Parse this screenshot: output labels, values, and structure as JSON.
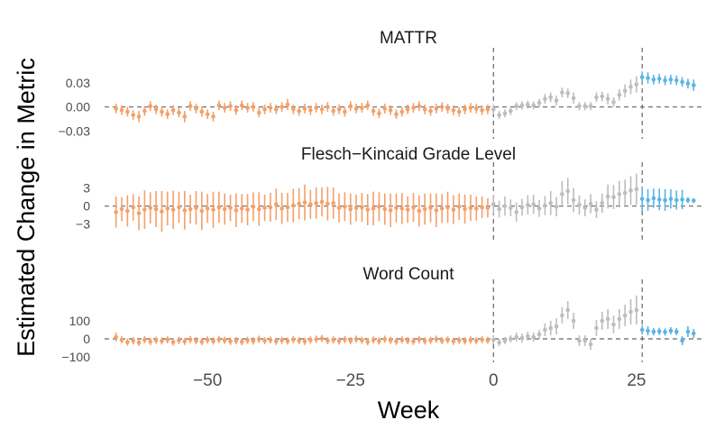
{
  "chart_data": {
    "type": "scatter",
    "xlabel": "Week",
    "ylabel": "Estimated Change in Metric",
    "xlim": [
      -68,
      37
    ],
    "x_ticks": [
      -50,
      -25,
      0,
      25
    ],
    "x_tick_labels": [
      "−50",
      "−25",
      "0",
      "25"
    ],
    "vlines": [
      0,
      26
    ],
    "colors": {
      "pre": "#F4A06A",
      "mid": "#BDBDBD",
      "post": "#5AB4E6"
    },
    "panels": [
      {
        "title": "MATTR",
        "ylim": [
          -0.035,
          0.06
        ],
        "y_ticks": [
          0.03,
          0.0,
          -0.03
        ],
        "y_tick_labels": [
          "0.03",
          "0.00",
          "−0.03"
        ],
        "pre": {
          "x": [
            -66,
            -65,
            -64,
            -63,
            -62,
            -61,
            -60,
            -59,
            -58,
            -57,
            -56,
            -55,
            -54,
            -53,
            -52,
            -51,
            -50,
            -49,
            -48,
            -47,
            -46,
            -45,
            -44,
            -43,
            -42,
            -41,
            -40,
            -39,
            -38,
            -37,
            -36,
            -35,
            -34,
            -33,
            -32,
            -31,
            -30,
            -29,
            -28,
            -27,
            -26,
            -25,
            -24,
            -23,
            -22,
            -21,
            -20,
            -19,
            -18,
            -17,
            -16,
            -15,
            -14,
            -13,
            -12,
            -11,
            -10,
            -9,
            -8,
            -7,
            -6,
            -5,
            -4,
            -3,
            -2,
            -1
          ],
          "y": [
            -0.002,
            -0.004,
            -0.006,
            -0.01,
            -0.012,
            -0.005,
            0.001,
            -0.003,
            -0.006,
            -0.009,
            -0.004,
            -0.007,
            -0.012,
            0.001,
            -0.002,
            -0.006,
            -0.009,
            -0.012,
            0.002,
            -0.001,
            0.001,
            -0.004,
            0.002,
            -0.001,
            0.0,
            -0.007,
            -0.003,
            -0.001,
            -0.003,
            0.0,
            0.003,
            -0.003,
            -0.005,
            -0.002,
            -0.004,
            -0.001,
            -0.003,
            0.0,
            -0.005,
            -0.003,
            -0.006,
            0.001,
            -0.002,
            -0.001,
            0.002,
            -0.005,
            -0.008,
            -0.002,
            -0.004,
            -0.009,
            -0.006,
            -0.003,
            -0.001,
            0.001,
            -0.003,
            -0.005,
            -0.002,
            0.0,
            -0.002,
            -0.004,
            -0.006,
            -0.003,
            -0.001,
            -0.002,
            -0.004,
            -0.003
          ],
          "err": [
            0.006,
            0.006,
            0.006,
            0.006,
            0.007,
            0.006,
            0.006,
            0.006,
            0.006,
            0.006,
            0.006,
            0.006,
            0.007,
            0.006,
            0.006,
            0.006,
            0.006,
            0.006,
            0.006,
            0.006,
            0.006,
            0.006,
            0.006,
            0.006,
            0.006,
            0.006,
            0.006,
            0.006,
            0.006,
            0.006,
            0.007,
            0.006,
            0.006,
            0.006,
            0.006,
            0.006,
            0.006,
            0.006,
            0.006,
            0.006,
            0.006,
            0.006,
            0.006,
            0.006,
            0.006,
            0.006,
            0.006,
            0.006,
            0.006,
            0.006,
            0.006,
            0.006,
            0.006,
            0.006,
            0.006,
            0.006,
            0.006,
            0.006,
            0.006,
            0.006,
            0.006,
            0.006,
            0.006,
            0.006,
            0.006,
            0.006
          ]
        },
        "mid": {
          "x": [
            0,
            1,
            2,
            3,
            4,
            5,
            6,
            7,
            8,
            9,
            10,
            11,
            12,
            13,
            14,
            15,
            16,
            17,
            18,
            19,
            20,
            21,
            22,
            23,
            24,
            25
          ],
          "y": [
            -0.003,
            -0.01,
            -0.008,
            -0.005,
            0.001,
            0.002,
            0.003,
            0.002,
            0.005,
            0.01,
            0.012,
            0.008,
            0.018,
            0.017,
            0.011,
            0.001,
            0.001,
            0.001,
            0.012,
            0.013,
            0.01,
            0.006,
            0.015,
            0.02,
            0.025,
            0.028
          ],
          "err": [
            0.006,
            0.005,
            0.005,
            0.005,
            0.005,
            0.005,
            0.005,
            0.005,
            0.005,
            0.006,
            0.006,
            0.006,
            0.006,
            0.006,
            0.007,
            0.005,
            0.005,
            0.005,
            0.006,
            0.006,
            0.007,
            0.006,
            0.007,
            0.008,
            0.009,
            0.01
          ]
        },
        "post": {
          "x": [
            26,
            27,
            28,
            29,
            30,
            31,
            32,
            33,
            34,
            35
          ],
          "y": [
            0.037,
            0.036,
            0.034,
            0.035,
            0.033,
            0.034,
            0.033,
            0.031,
            0.029,
            0.027
          ],
          "err": [
            0.007,
            0.007,
            0.006,
            0.006,
            0.006,
            0.006,
            0.006,
            0.006,
            0.006,
            0.007
          ]
        }
      },
      {
        "title": "Flesch−Kincaid Grade Level",
        "ylim": [
          -5,
          5.5
        ],
        "y_ticks": [
          3,
          0,
          -3
        ],
        "y_tick_labels": [
          "3",
          "0",
          "−3"
        ],
        "pre": {
          "x": [
            -66,
            -65,
            -64,
            -63,
            -62,
            -61,
            -60,
            -59,
            -58,
            -57,
            -56,
            -55,
            -54,
            -53,
            -52,
            -51,
            -50,
            -49,
            -48,
            -47,
            -46,
            -45,
            -44,
            -43,
            -42,
            -41,
            -40,
            -39,
            -38,
            -37,
            -36,
            -35,
            -34,
            -33,
            -32,
            -31,
            -30,
            -29,
            -28,
            -27,
            -26,
            -25,
            -24,
            -23,
            -22,
            -21,
            -20,
            -19,
            -18,
            -17,
            -16,
            -15,
            -14,
            -13,
            -12,
            -11,
            -10,
            -9,
            -8,
            -7,
            -6,
            -5,
            -4,
            -3,
            -2,
            -1
          ],
          "y": [
            -1.0,
            -0.5,
            -0.8,
            -0.2,
            -1.2,
            -0.6,
            -0.3,
            -0.5,
            -0.9,
            -0.4,
            -0.6,
            -0.2,
            -0.7,
            -0.5,
            -0.3,
            -0.8,
            -0.4,
            -0.6,
            -0.2,
            -0.5,
            -0.3,
            -0.7,
            -0.4,
            -0.6,
            -0.1,
            -0.5,
            -0.3,
            -0.2,
            0.3,
            -0.4,
            -0.2,
            0.1,
            0.4,
            0.6,
            0.3,
            0.5,
            0.7,
            0.4,
            0.5,
            -0.3,
            -0.1,
            -0.5,
            -0.3,
            -0.2,
            -0.6,
            -0.4,
            -0.1,
            -0.5,
            -0.7,
            -0.3,
            -0.4,
            -0.6,
            -0.2,
            -0.8,
            -0.5,
            -0.3,
            -0.7,
            -0.4,
            -0.2,
            -0.6,
            -0.1,
            -0.5,
            -0.3,
            -0.4,
            -0.2,
            -0.3
          ],
          "err": [
            2.6,
            2.0,
            2.6,
            2.2,
            2.8,
            3.2,
            2.6,
            3.0,
            3.4,
            2.8,
            3.2,
            2.6,
            3.2,
            2.4,
            2.8,
            3.2,
            2.4,
            3.0,
            2.6,
            2.6,
            2.2,
            2.8,
            2.4,
            2.6,
            2.4,
            2.8,
            2.2,
            2.4,
            2.6,
            2.6,
            2.4,
            2.8,
            2.6,
            3.0,
            2.4,
            2.6,
            2.4,
            2.8,
            2.6,
            2.4,
            2.4,
            2.6,
            2.2,
            2.4,
            2.6,
            2.8,
            2.4,
            2.6,
            2.8,
            2.4,
            2.6,
            2.2,
            2.4,
            2.6,
            2.6,
            2.4,
            2.8,
            2.4,
            2.6,
            2.4,
            2.2,
            2.4,
            2.2,
            2.0,
            1.8,
            1.6
          ]
        },
        "mid": {
          "x": [
            0,
            1,
            2,
            3,
            4,
            5,
            6,
            7,
            8,
            9,
            10,
            11,
            12,
            13,
            14,
            15,
            16,
            17,
            18,
            19,
            20,
            21,
            22,
            23,
            24,
            25
          ],
          "y": [
            0.3,
            -0.5,
            0.0,
            -0.3,
            -1.0,
            -0.2,
            0.2,
            0.3,
            -0.4,
            0.1,
            0.5,
            -0.1,
            2.0,
            2.5,
            1.0,
            0.2,
            -0.3,
            0.4,
            -0.6,
            0.5,
            1.6,
            1.5,
            2.0,
            2.2,
            2.6,
            2.8
          ],
          "err": [
            1.6,
            1.4,
            1.6,
            1.4,
            1.6,
            1.4,
            1.6,
            1.6,
            1.4,
            1.6,
            2.0,
            1.6,
            2.2,
            2.2,
            2.0,
            1.6,
            1.4,
            1.6,
            1.4,
            1.6,
            2.0,
            2.0,
            2.2,
            2.2,
            2.4,
            2.6
          ]
        },
        "post": {
          "x": [
            26,
            27,
            28,
            29,
            30,
            31,
            32,
            33,
            34,
            35
          ],
          "y": [
            1.2,
            1.0,
            1.3,
            1.1,
            1.0,
            1.2,
            1.0,
            1.1,
            1.0,
            0.9
          ],
          "err": [
            2.0,
            1.8,
            1.6,
            1.8,
            1.8,
            1.6,
            1.6,
            1.6,
            0.5,
            0.4
          ]
        }
      },
      {
        "title": "Word Count",
        "ylim": [
          -110,
          270
        ],
        "y_ticks": [
          100,
          0,
          -100
        ],
        "y_tick_labels": [
          "100",
          "0",
          "−100"
        ],
        "pre": {
          "x": [
            -66,
            -65,
            -64,
            -63,
            -62,
            -61,
            -60,
            -59,
            -58,
            -57,
            -56,
            -55,
            -54,
            -53,
            -52,
            -51,
            -50,
            -49,
            -48,
            -47,
            -46,
            -45,
            -44,
            -43,
            -42,
            -41,
            -40,
            -39,
            -38,
            -37,
            -36,
            -35,
            -34,
            -33,
            -32,
            -31,
            -30,
            -29,
            -28,
            -27,
            -26,
            -25,
            -24,
            -23,
            -22,
            -21,
            -20,
            -19,
            -18,
            -17,
            -16,
            -15,
            -14,
            -13,
            -12,
            -11,
            -10,
            -9,
            -8,
            -7,
            -6,
            -5,
            -4,
            -3,
            -2,
            -1
          ],
          "y": [
            10,
            -5,
            -18,
            -10,
            -20,
            -5,
            -15,
            -8,
            -12,
            -5,
            -18,
            -8,
            -14,
            -4,
            -10,
            -16,
            -6,
            -12,
            -3,
            -8,
            -14,
            -10,
            -16,
            -8,
            -12,
            -2,
            -10,
            -6,
            -14,
            -8,
            -12,
            -4,
            -10,
            -14,
            -6,
            -2,
            2,
            -10,
            -6,
            -12,
            -4,
            -10,
            -2,
            -8,
            -16,
            -6,
            -12,
            -2,
            -8,
            -14,
            -6,
            -10,
            -14,
            -4,
            -12,
            -8,
            -2,
            -10,
            -6,
            -14,
            -8,
            -12,
            -6,
            -10,
            -4,
            -8
          ],
          "err": [
            25,
            20,
            20,
            20,
            20,
            20,
            20,
            20,
            20,
            20,
            20,
            20,
            20,
            20,
            20,
            20,
            20,
            20,
            20,
            20,
            20,
            20,
            20,
            20,
            20,
            20,
            20,
            20,
            20,
            20,
            20,
            20,
            20,
            20,
            20,
            20,
            20,
            20,
            20,
            20,
            20,
            20,
            20,
            20,
            20,
            20,
            20,
            20,
            20,
            20,
            20,
            20,
            20,
            20,
            20,
            20,
            20,
            20,
            20,
            20,
            20,
            20,
            20,
            20,
            20,
            20
          ]
        },
        "mid": {
          "x": [
            0,
            1,
            2,
            3,
            4,
            5,
            6,
            7,
            8,
            9,
            10,
            11,
            12,
            13,
            14,
            15,
            16,
            17,
            18,
            19,
            20,
            21,
            22,
            23,
            24,
            25
          ],
          "y": [
            -5,
            -20,
            -10,
            0,
            10,
            5,
            15,
            10,
            25,
            50,
            60,
            70,
            130,
            160,
            100,
            -10,
            -10,
            -30,
            60,
            100,
            110,
            80,
            110,
            130,
            150,
            160
          ],
          "err": [
            25,
            20,
            20,
            20,
            25,
            25,
            25,
            25,
            25,
            35,
            40,
            45,
            45,
            50,
            45,
            30,
            30,
            30,
            45,
            50,
            55,
            50,
            55,
            60,
            70,
            80
          ]
        },
        "post": {
          "x": [
            26,
            27,
            28,
            29,
            30,
            31,
            32,
            33,
            34,
            35
          ],
          "y": [
            50,
            45,
            40,
            42,
            38,
            45,
            40,
            -10,
            40,
            30
          ],
          "err": [
            25,
            25,
            20,
            20,
            20,
            20,
            20,
            25,
            30,
            25
          ]
        }
      }
    ]
  }
}
